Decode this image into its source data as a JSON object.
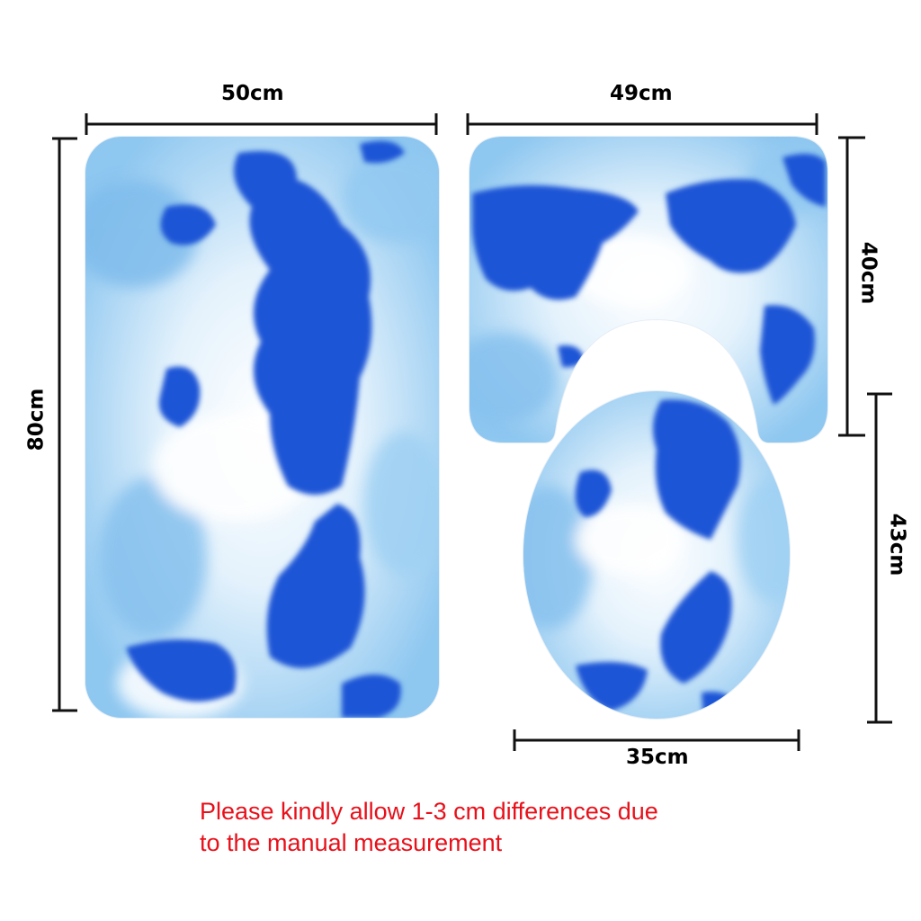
{
  "dimensions": {
    "bath_mat_width": "50cm",
    "bath_mat_height": "80cm",
    "contour_mat_width": "49cm",
    "contour_mat_height": "40cm",
    "lid_cover_width": "35cm",
    "lid_cover_height": "43cm"
  },
  "notice": {
    "line1": "Please kindly allow 1-3 cm differences due",
    "line2": "to the manual measurement"
  },
  "colors": {
    "map_blue": "#1a54d6",
    "sky_light": "#a9d4f3",
    "notice_red": "#e8101a"
  }
}
